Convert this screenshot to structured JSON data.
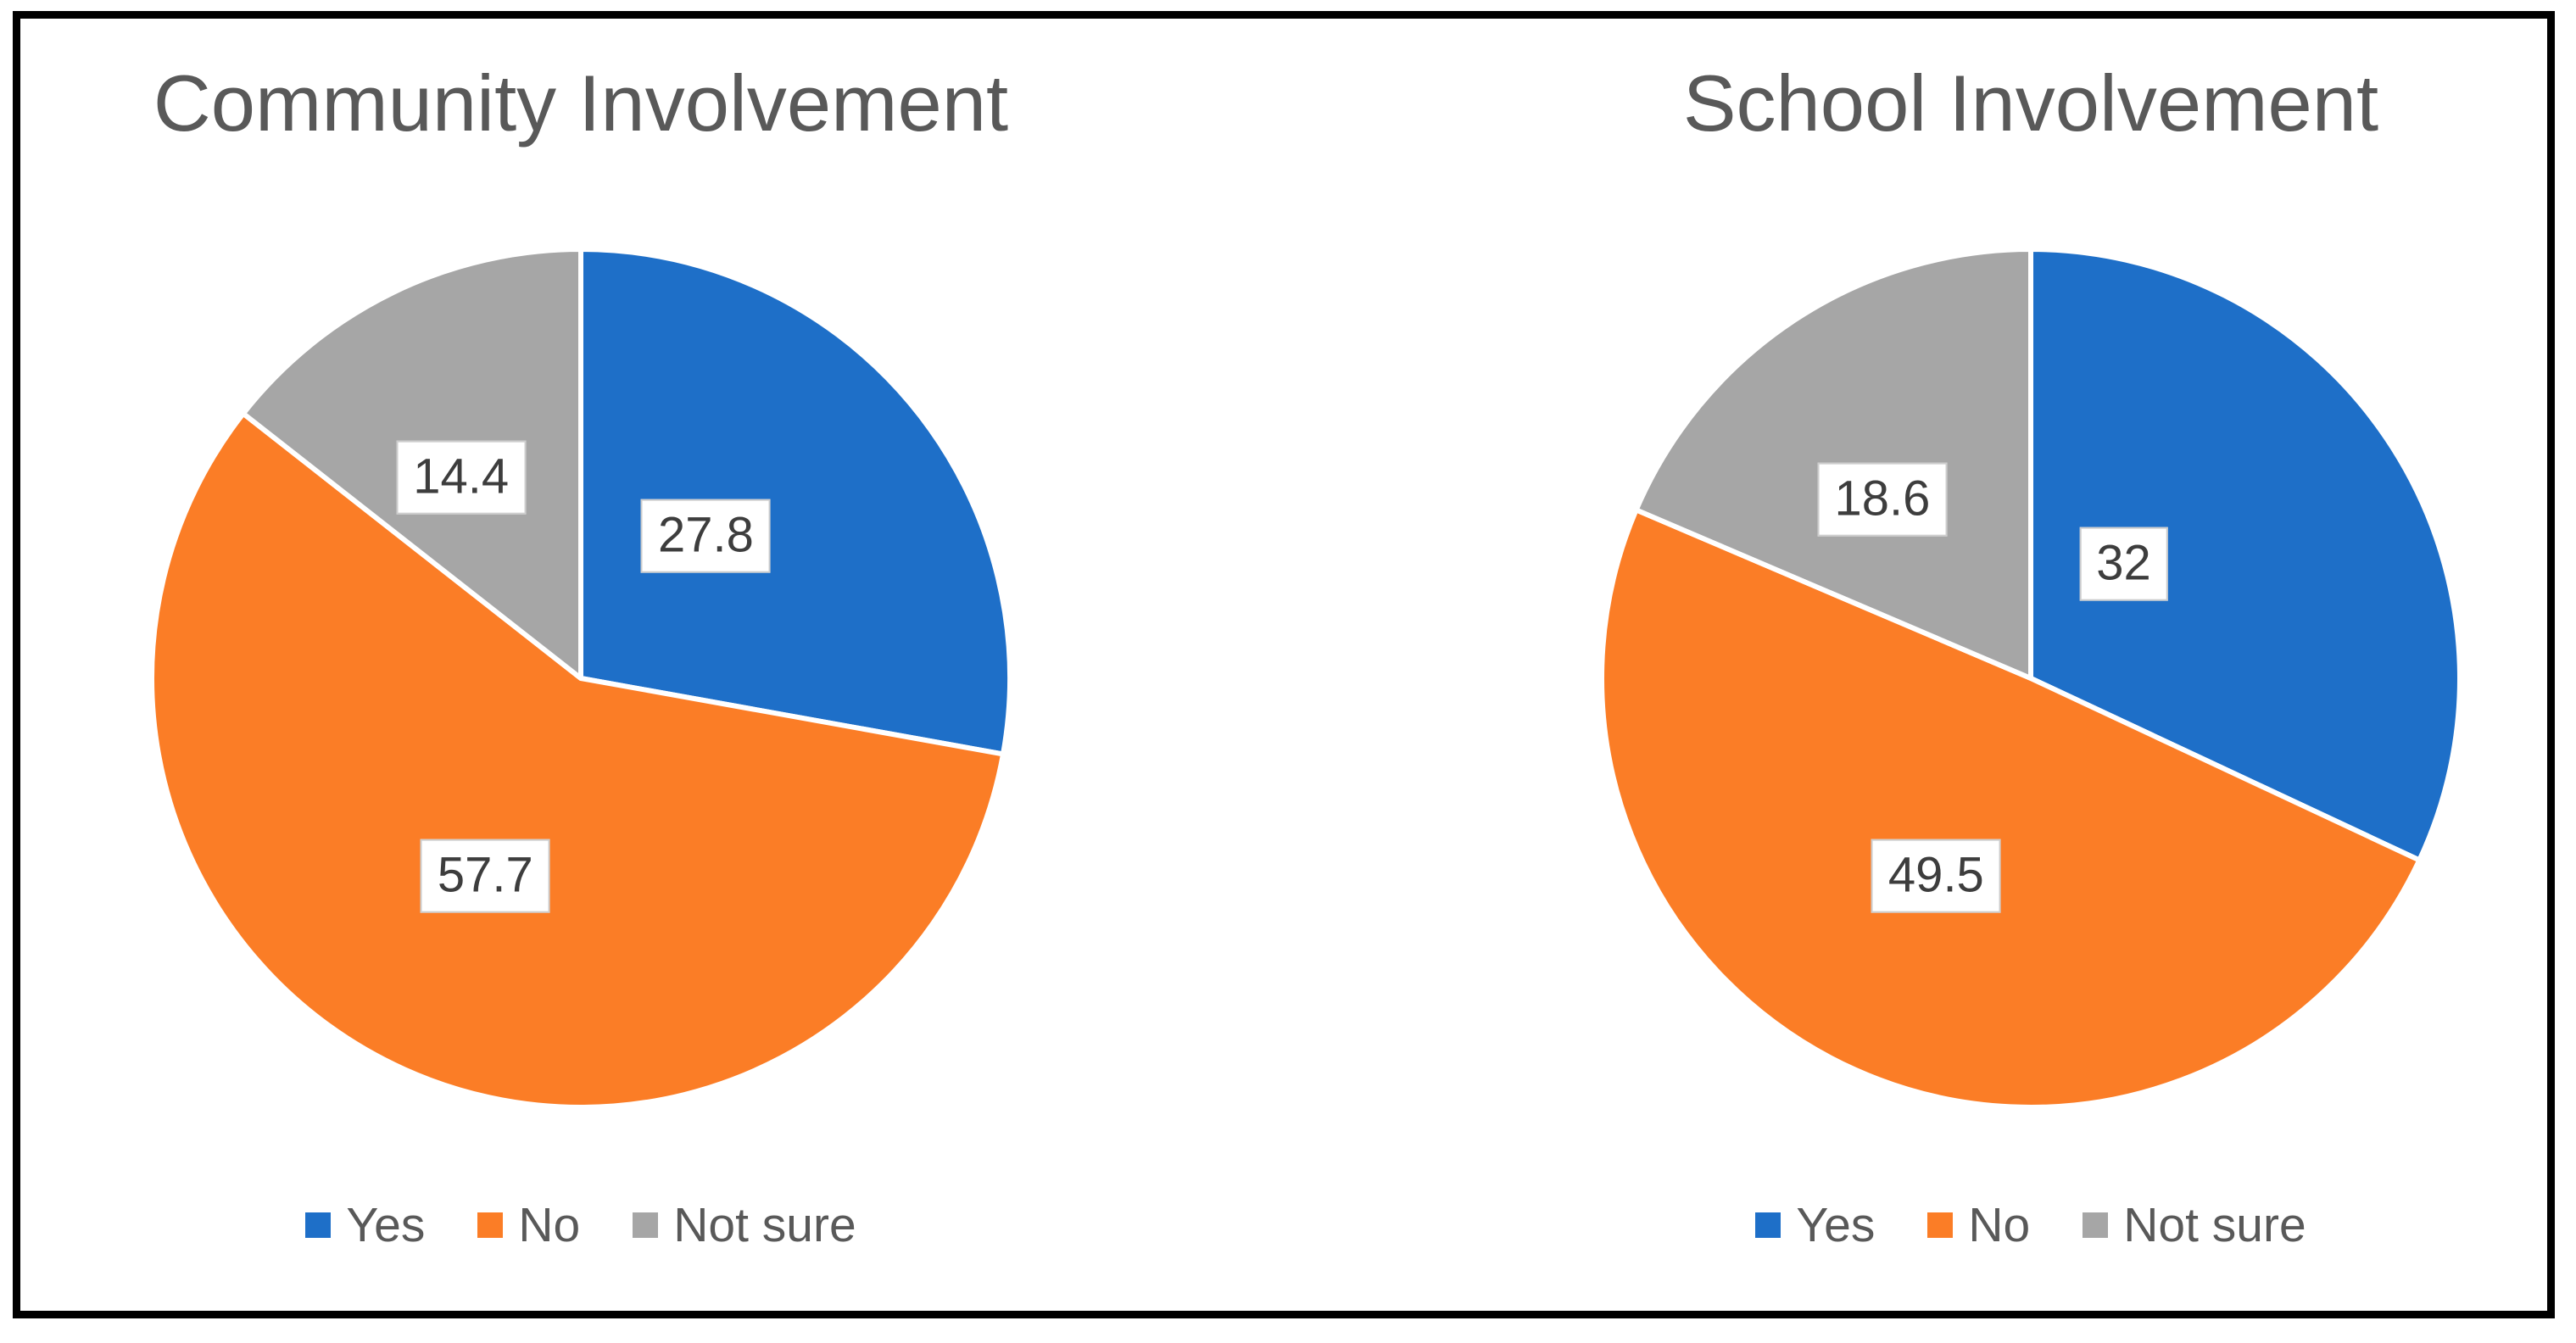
{
  "frame": {
    "border_color": "#000000",
    "background": "#ffffff"
  },
  "text_colors": {
    "title": "#595959",
    "legend": "#595959",
    "data_label": "#3d3d3d",
    "data_label_border": "#cdcdcd"
  },
  "chart_data": [
    {
      "type": "pie",
      "title": "Community Involvement",
      "categories": [
        "Yes",
        "No",
        "Not sure"
      ],
      "values": [
        27.8,
        57.7,
        14.4
      ],
      "data_labels": [
        "27.8",
        "57.7",
        "14.4"
      ],
      "colors": [
        "#1e6fc8",
        "#fb7d26",
        "#a6a6a6"
      ],
      "slice_border_color": "#ffffff",
      "start_angle_deg": 0,
      "direction": "clockwise",
      "legend_position": "bottom",
      "label_pos": [
        {
          "x": 0.644,
          "y": 0.336
        },
        {
          "x": 0.39,
          "y": 0.728
        },
        {
          "x": 0.362,
          "y": 0.269
        }
      ]
    },
    {
      "type": "pie",
      "title": "School Involvement",
      "categories": [
        "Yes",
        "No",
        "Not sure"
      ],
      "values": [
        32,
        49.5,
        18.6
      ],
      "data_labels": [
        "32",
        "49.5",
        "18.6"
      ],
      "colors": [
        "#1e6fc8",
        "#fb7d26",
        "#a6a6a6"
      ],
      "slice_border_color": "#ffffff",
      "start_angle_deg": 0,
      "direction": "clockwise",
      "legend_position": "bottom",
      "label_pos": [
        {
          "x": 0.607,
          "y": 0.368
        },
        {
          "x": 0.391,
          "y": 0.728
        },
        {
          "x": 0.329,
          "y": 0.294
        }
      ]
    }
  ]
}
